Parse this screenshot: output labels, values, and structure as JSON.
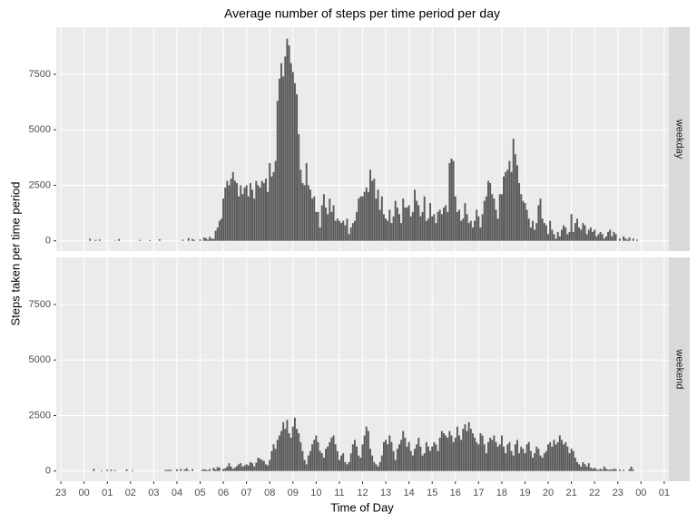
{
  "chart_data": {
    "type": "bar",
    "title": "Average number of steps per time period per day",
    "xlabel": "Time of Day",
    "ylabel": "Steps taken per time period",
    "color": "#595959",
    "grid": true,
    "xlim": [
      -72,
      1512
    ],
    "xticks": [
      {
        "value": -60,
        "label": "23"
      },
      {
        "value": 0,
        "label": "00"
      },
      {
        "value": 60,
        "label": "01"
      },
      {
        "value": 120,
        "label": "02"
      },
      {
        "value": 180,
        "label": "03"
      },
      {
        "value": 240,
        "label": "04"
      },
      {
        "value": 300,
        "label": "05"
      },
      {
        "value": 360,
        "label": "06"
      },
      {
        "value": 420,
        "label": "07"
      },
      {
        "value": 480,
        "label": "08"
      },
      {
        "value": 540,
        "label": "09"
      },
      {
        "value": 600,
        "label": "10"
      },
      {
        "value": 660,
        "label": "11"
      },
      {
        "value": 720,
        "label": "12"
      },
      {
        "value": 780,
        "label": "13"
      },
      {
        "value": 840,
        "label": "14"
      },
      {
        "value": 900,
        "label": "15"
      },
      {
        "value": 960,
        "label": "16"
      },
      {
        "value": 1020,
        "label": "17"
      },
      {
        "value": 1080,
        "label": "18"
      },
      {
        "value": 1140,
        "label": "19"
      },
      {
        "value": 1200,
        "label": "20"
      },
      {
        "value": 1260,
        "label": "21"
      },
      {
        "value": 1320,
        "label": "22"
      },
      {
        "value": 1380,
        "label": "23"
      },
      {
        "value": 1440,
        "label": "00"
      },
      {
        "value": 1500,
        "label": "01"
      }
    ],
    "ylim": [
      -460,
      9620
    ],
    "yticks": [
      0,
      2500,
      5000,
      7500
    ],
    "x": [
      0,
      5,
      10,
      15,
      20,
      25,
      30,
      35,
      40,
      45,
      50,
      55,
      60,
      65,
      70,
      75,
      80,
      85,
      90,
      95,
      100,
      105,
      110,
      115,
      120,
      125,
      130,
      135,
      140,
      145,
      150,
      155,
      160,
      165,
      170,
      175,
      180,
      185,
      190,
      195,
      200,
      205,
      210,
      215,
      220,
      225,
      230,
      235,
      240,
      245,
      250,
      255,
      260,
      265,
      270,
      275,
      280,
      285,
      290,
      295,
      300,
      305,
      310,
      315,
      320,
      325,
      330,
      335,
      340,
      345,
      350,
      355,
      360,
      365,
      370,
      375,
      380,
      385,
      390,
      395,
      400,
      405,
      410,
      415,
      420,
      425,
      430,
      435,
      440,
      445,
      450,
      455,
      460,
      465,
      470,
      475,
      480,
      485,
      490,
      495,
      500,
      505,
      510,
      515,
      520,
      525,
      530,
      535,
      540,
      545,
      550,
      555,
      560,
      565,
      570,
      575,
      580,
      585,
      590,
      595,
      600,
      605,
      610,
      615,
      620,
      625,
      630,
      635,
      640,
      645,
      650,
      655,
      660,
      665,
      670,
      675,
      680,
      685,
      690,
      695,
      700,
      705,
      710,
      715,
      720,
      725,
      730,
      735,
      740,
      745,
      750,
      755,
      760,
      765,
      770,
      775,
      780,
      785,
      790,
      795,
      800,
      805,
      810,
      815,
      820,
      825,
      830,
      835,
      840,
      845,
      850,
      855,
      860,
      865,
      870,
      875,
      880,
      885,
      890,
      895,
      900,
      905,
      910,
      915,
      920,
      925,
      930,
      935,
      940,
      945,
      950,
      955,
      960,
      965,
      970,
      975,
      980,
      985,
      990,
      995,
      1000,
      1005,
      1010,
      1015,
      1020,
      1025,
      1030,
      1035,
      1040,
      1045,
      1050,
      1055,
      1060,
      1065,
      1070,
      1075,
      1080,
      1085,
      1090,
      1095,
      1100,
      1105,
      1110,
      1115,
      1120,
      1125,
      1130,
      1135,
      1140,
      1145,
      1150,
      1155,
      1160,
      1165,
      1170,
      1175,
      1180,
      1185,
      1190,
      1195,
      1200,
      1205,
      1210,
      1215,
      1220,
      1225,
      1230,
      1235,
      1240,
      1245,
      1250,
      1255,
      1260,
      1265,
      1270,
      1275,
      1280,
      1285,
      1290,
      1295,
      1300,
      1305,
      1310,
      1315,
      1320,
      1325,
      1330,
      1335,
      1340,
      1345,
      1350,
      1355,
      1360,
      1365,
      1370,
      1375,
      1380,
      1385,
      1390,
      1395,
      1400,
      1405,
      1410,
      1415,
      1420,
      1425,
      1430,
      1435
    ],
    "panels": [
      {
        "name": "weekday",
        "values": [
          0,
          0,
          0,
          90,
          0,
          0,
          40,
          0,
          60,
          0,
          0,
          0,
          0,
          0,
          0,
          0,
          20,
          0,
          80,
          0,
          0,
          0,
          0,
          0,
          0,
          0,
          0,
          0,
          0,
          40,
          0,
          0,
          0,
          0,
          30,
          0,
          0,
          0,
          0,
          70,
          0,
          0,
          0,
          0,
          0,
          0,
          0,
          0,
          0,
          0,
          0,
          50,
          0,
          0,
          120,
          0,
          80,
          40,
          0,
          0,
          60,
          0,
          150,
          120,
          50,
          180,
          100,
          90,
          450,
          600,
          900,
          1000,
          1900,
          2400,
          2700,
          2500,
          2800,
          3100,
          2700,
          2600,
          2000,
          2500,
          2100,
          2400,
          2500,
          2000,
          2600,
          2300,
          1900,
          2700,
          2500,
          2400,
          2700,
          2600,
          2800,
          2200,
          3500,
          2900,
          3100,
          3600,
          6300,
          7300,
          8000,
          7400,
          8300,
          9100,
          8800,
          8000,
          7600,
          7100,
          6600,
          4800,
          3200,
          2600,
          2500,
          3500,
          2500,
          2300,
          1900,
          2000,
          1300,
          1300,
          600,
          1600,
          2100,
          1500,
          1200,
          1900,
          1300,
          1600,
          900,
          1000,
          900,
          800,
          900,
          700,
          1000,
          300,
          600,
          800,
          900,
          1300,
          1900,
          2000,
          2000,
          2200,
          2400,
          2200,
          3200,
          2700,
          2800,
          1900,
          2300,
          1400,
          2000,
          1200,
          1000,
          900,
          1400,
          800,
          1100,
          1800,
          1500,
          1200,
          800,
          1900,
          1500,
          1500,
          1600,
          1100,
          1300,
          2300,
          1800,
          1600,
          1100,
          1300,
          2000,
          900,
          1000,
          1700,
          1100,
          1200,
          800,
          1300,
          1400,
          1200,
          1500,
          1600,
          1300,
          3500,
          3700,
          3600,
          2000,
          1300,
          1400,
          900,
          1000,
          1700,
          1200,
          800,
          900,
          600,
          900,
          1400,
          1100,
          600,
          1200,
          1800,
          2000,
          2700,
          2600,
          2100,
          1900,
          1400,
          1000,
          2100,
          2100,
          2900,
          3100,
          3200,
          3600,
          3100,
          4600,
          3900,
          3400,
          2600,
          2100,
          1800,
          1700,
          1400,
          1000,
          600,
          900,
          500,
          800,
          1600,
          1900,
          1000,
          800,
          700,
          300,
          900,
          500,
          300,
          100,
          400,
          200,
          500,
          700,
          600,
          300,
          400,
          1200,
          400,
          800,
          1000,
          600,
          500,
          800,
          700,
          300,
          500,
          600,
          400,
          500,
          200,
          300,
          400,
          300,
          100,
          200,
          400,
          500,
          200,
          400,
          300,
          0,
          100,
          0,
          200,
          100,
          50,
          150,
          0,
          100,
          0,
          50,
          0
        ]
      },
      {
        "name": "weekend",
        "values": [
          0,
          0,
          0,
          0,
          0,
          100,
          0,
          0,
          0,
          30,
          0,
          0,
          50,
          0,
          60,
          0,
          40,
          0,
          0,
          0,
          0,
          0,
          70,
          0,
          0,
          30,
          0,
          0,
          0,
          0,
          0,
          0,
          0,
          0,
          0,
          0,
          0,
          0,
          0,
          0,
          0,
          0,
          40,
          50,
          60,
          40,
          0,
          0,
          70,
          0,
          90,
          0,
          60,
          120,
          30,
          0,
          80,
          0,
          0,
          0,
          0,
          50,
          80,
          60,
          30,
          90,
          0,
          150,
          70,
          180,
          150,
          0,
          90,
          120,
          200,
          350,
          200,
          100,
          150,
          220,
          300,
          350,
          200,
          250,
          300,
          250,
          400,
          350,
          200,
          380,
          600,
          550,
          500,
          450,
          300,
          250,
          500,
          900,
          1200,
          1000,
          1400,
          1600,
          1800,
          2200,
          1900,
          2300,
          1700,
          1500,
          2000,
          2400,
          1900,
          1700,
          1300,
          900,
          500,
          300,
          700,
          900,
          1200,
          1400,
          1600,
          1300,
          900,
          800,
          600,
          1000,
          1100,
          1300,
          1500,
          1600,
          1200,
          900,
          500,
          700,
          800,
          400,
          300,
          400,
          800,
          1200,
          1400,
          1100,
          700,
          600,
          1200,
          1600,
          2000,
          1800,
          1000,
          700,
          400,
          300,
          200,
          400,
          700,
          1300,
          1400,
          1200,
          1600,
          1300,
          900,
          500,
          1000,
          1200,
          1400,
          1800,
          1500,
          1100,
          1300,
          900,
          700,
          1000,
          1200,
          1500,
          1100,
          700,
          800,
          1300,
          1100,
          900,
          1100,
          1300,
          1200,
          900,
          1500,
          1800,
          1700,
          1600,
          1500,
          1800,
          1600,
          1300,
          1500,
          2000,
          1600,
          1400,
          1900,
          2100,
          1800,
          2200,
          1900,
          1700,
          1500,
          1300,
          1200,
          1700,
          1600,
          1200,
          800,
          1300,
          1500,
          1400,
          1600,
          1300,
          1100,
          1200,
          1600,
          1100,
          800,
          1200,
          1300,
          900,
          700,
          1200,
          1400,
          800,
          1100,
          1000,
          800,
          1200,
          1300,
          900,
          600,
          800,
          1100,
          1000,
          700,
          600,
          800,
          900,
          1200,
          1300,
          1100,
          1400,
          1200,
          1300,
          1600,
          1400,
          1200,
          1300,
          1100,
          800,
          1000,
          900,
          600,
          400,
          300,
          200,
          400,
          300,
          200,
          350,
          150,
          100,
          150,
          80,
          50,
          100,
          60,
          200,
          100,
          50,
          70,
          60,
          100,
          80,
          0,
          60,
          0,
          50,
          0,
          0,
          80,
          200,
          60,
          0,
          0,
          0
        ]
      }
    ]
  }
}
